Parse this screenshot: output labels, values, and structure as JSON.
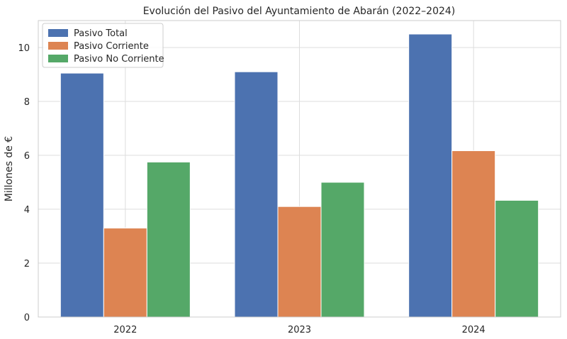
{
  "chart_data": {
    "type": "bar",
    "title": "Evolución del Pasivo del Ayuntamiento de Abarán (2022–2024)",
    "xlabel": "",
    "ylabel": "Millones de €",
    "categories": [
      "2022",
      "2023",
      "2024"
    ],
    "series": [
      {
        "name": "Pasivo Total",
        "values": [
          9.05,
          9.1,
          10.5
        ],
        "color": "#4c72b0"
      },
      {
        "name": "Pasivo Corriente",
        "values": [
          3.3,
          4.1,
          6.17
        ],
        "color": "#dd8452"
      },
      {
        "name": "Pasivo No Corriente",
        "values": [
          5.75,
          5.0,
          4.33
        ],
        "color": "#55a868"
      }
    ],
    "ylim": [
      0,
      11
    ],
    "yticks": [
      0,
      2,
      4,
      6,
      8,
      10
    ],
    "grid": true,
    "legend_position": "top-left"
  }
}
